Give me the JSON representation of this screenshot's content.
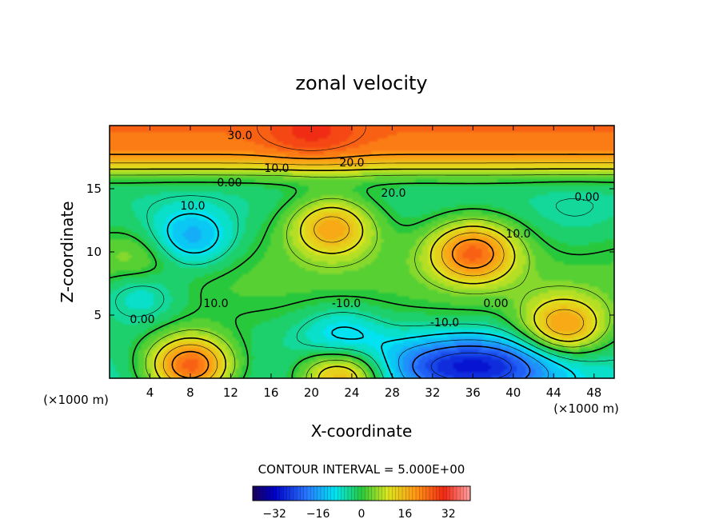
{
  "chart_data": {
    "type": "heatmap",
    "title": "zonal velocity",
    "xlabel": "X-coordinate",
    "ylabel": "Z-coordinate",
    "x_unit": "(×1000 m)",
    "z_unit": "(×1000 m)",
    "xlim": [
      0,
      50
    ],
    "ylim": [
      0,
      20
    ],
    "x_ticks": [
      "4",
      "8",
      "12",
      "16",
      "20",
      "24",
      "28",
      "32",
      "36",
      "40",
      "44",
      "48"
    ],
    "y_ticks": [
      "5",
      "10",
      "15"
    ],
    "contour_interval_label": "CONTOUR INTERVAL = 5.000E+00",
    "contour_interval": 5,
    "colorbar": {
      "range": [
        -40,
        40
      ],
      "ticks": [
        "−32",
        "−16",
        "0",
        "16",
        "32"
      ]
    },
    "contour_labels": [
      "30.0",
      "20.0",
      "10.0",
      "0.00",
      "20.0",
      "10.0",
      "10.0",
      "0.00",
      "-10.0",
      "-10.0",
      "10.0",
      "0.00",
      "0.00"
    ],
    "features": [
      {
        "x": 20,
        "z": 19.5,
        "value": 30
      },
      {
        "x": 36,
        "z": 10,
        "value": 25
      },
      {
        "x": 22,
        "z": 12,
        "value": 18
      },
      {
        "x": 8,
        "z": 1,
        "value": 25
      },
      {
        "x": 45,
        "z": 4,
        "value": 20
      },
      {
        "x": 23,
        "z": 0.3,
        "value": 20
      },
      {
        "x": 36,
        "z": 1,
        "value": -30
      },
      {
        "x": 23,
        "z": 3,
        "value": -15
      },
      {
        "x": 8,
        "z": 11,
        "value": -15
      },
      {
        "x": 3,
        "z": 7,
        "value": -10
      },
      {
        "x": 46,
        "z": 13,
        "value": -5
      },
      {
        "x": 3,
        "z": 9,
        "value": 10
      },
      {
        "x": 46,
        "z": 10,
        "value": 0
      }
    ]
  }
}
